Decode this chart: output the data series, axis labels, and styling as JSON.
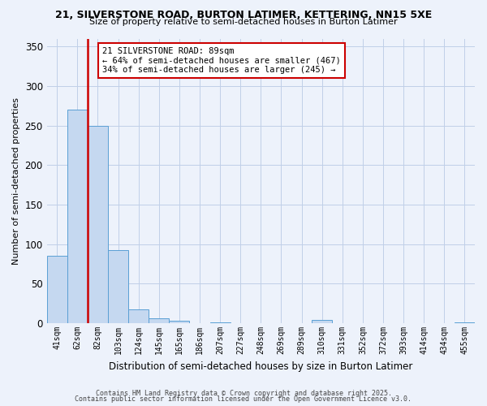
{
  "title1": "21, SILVERSTONE ROAD, BURTON LATIMER, KETTERING, NN15 5XE",
  "title2": "Size of property relative to semi-detached houses in Burton Latimer",
  "xlabel": "Distribution of semi-detached houses by size in Burton Latimer",
  "ylabel": "Number of semi-detached properties",
  "categories": [
    "41sqm",
    "62sqm",
    "82sqm",
    "103sqm",
    "124sqm",
    "145sqm",
    "165sqm",
    "186sqm",
    "207sqm",
    "227sqm",
    "248sqm",
    "269sqm",
    "289sqm",
    "310sqm",
    "331sqm",
    "352sqm",
    "372sqm",
    "393sqm",
    "414sqm",
    "434sqm",
    "455sqm"
  ],
  "bar_values": [
    85,
    270,
    250,
    93,
    18,
    6,
    3,
    0,
    1,
    0,
    0,
    0,
    0,
    4,
    0,
    0,
    0,
    0,
    0,
    0,
    1
  ],
  "bar_color": "#c5d8f0",
  "bar_edge_color": "#5a9fd4",
  "red_line_color": "#cc0000",
  "red_line_x": 1.5,
  "annotation_text": "21 SILVERSTONE ROAD: 89sqm\n← 64% of semi-detached houses are smaller (467)\n34% of semi-detached houses are larger (245) →",
  "annotation_box_facecolor": "#ffffff",
  "annotation_border_color": "#cc0000",
  "ylim": [
    0,
    360
  ],
  "yticks": [
    0,
    50,
    100,
    150,
    200,
    250,
    300,
    350
  ],
  "footer1": "Contains HM Land Registry data © Crown copyright and database right 2025.",
  "footer2": "Contains public sector information licensed under the Open Government Licence v3.0.",
  "bg_color": "#edf2fb",
  "grid_color": "#c0cfe8"
}
